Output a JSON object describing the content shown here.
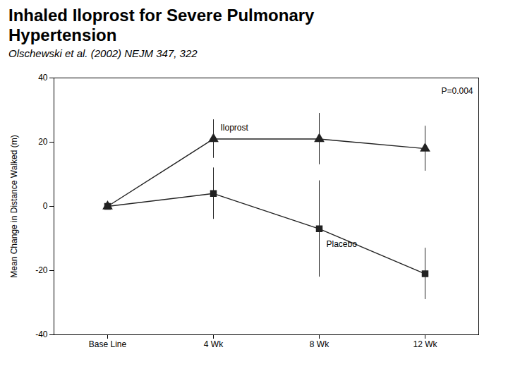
{
  "chart_data": {
    "type": "line",
    "title": "Inhaled Iloprost for Severe Pulmonary\nHypertension",
    "subtitle": "Olschewski et al. (2002) NEJM 347, 322",
    "categories": [
      "Base Line",
      "4 Wk",
      "8 Wk",
      "12 Wk"
    ],
    "series": [
      {
        "name": "Iloprost",
        "color": "#222222",
        "marker": "triangle",
        "values": [
          0,
          21,
          21,
          18
        ],
        "errors": [
          1,
          6,
          8,
          7
        ]
      },
      {
        "name": "Placebo",
        "color": "#222222",
        "marker": "square",
        "values": [
          0,
          4,
          -7,
          -21
        ],
        "errors": [
          1,
          8,
          15,
          8
        ]
      }
    ],
    "y_label": "Mean Change in Distance Walked (m)",
    "ylim": [
      -40,
      40
    ],
    "yticks": [
      -40,
      -20,
      0,
      20,
      40
    ],
    "annotations": [
      "P=0.004"
    ],
    "grid": false
  }
}
